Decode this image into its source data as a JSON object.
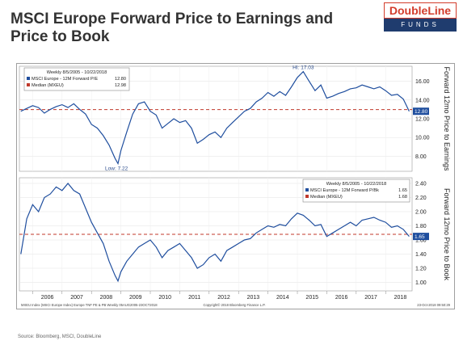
{
  "title": "MSCI Europe Forward Price to Earnings and Price to Book",
  "logo": {
    "top": "DoubleLine",
    "bottom": "FUNDS"
  },
  "source": "Source: Bloomberg, MSCI, DoubleLine",
  "footer": {
    "left": "MXEU Index (MSCI Europe Index) Europe TNF PE & PB  Weekly 05AUG2005-23OCT2018",
    "center": "Copyright© 2018 Bloomberg Finance L.P.",
    "right": "23-Oct-2018 09:50:29"
  },
  "colors": {
    "series": "#1f4e9e",
    "median": "#c0392b",
    "brand_red": "#d33c2b",
    "brand_navy": "#1f3c6e"
  },
  "chart_data": [
    {
      "type": "line",
      "axis_label": "Forward 12mo Price to Earnings",
      "legend": {
        "period": "Weekly 8/5/2005 - 10/22/2018",
        "series_label": "MSCI Europe - 12M Forward P/E",
        "series_value": "12.80",
        "median_label": "Median (MXEU)",
        "median_value": "12.98"
      },
      "ylim": [
        6.4,
        17.6
      ],
      "yticks": [
        "16.00",
        "14.00",
        "12.00",
        "10.00",
        "8.00"
      ],
      "ytick_values": [
        16,
        14,
        12,
        10,
        8
      ],
      "median": 12.98,
      "last_label": "12.80",
      "annotations": [
        {
          "text": "HI: 17.03",
          "x": 2015.2,
          "y": 17.03
        },
        {
          "text": "Low: 7.22",
          "x": 2008.85,
          "y": 7.22
        }
      ],
      "series": [
        {
          "name": "MSCI Europe - 12M Forward P/E",
          "x": [
            2005.6,
            2005.8,
            2006.0,
            2006.2,
            2006.4,
            2006.6,
            2006.8,
            2007.0,
            2007.2,
            2007.4,
            2007.6,
            2007.8,
            2008.0,
            2008.2,
            2008.4,
            2008.6,
            2008.8,
            2008.9,
            2009.0,
            2009.2,
            2009.4,
            2009.6,
            2009.8,
            2010.0,
            2010.2,
            2010.4,
            2010.6,
            2010.8,
            2011.0,
            2011.2,
            2011.4,
            2011.6,
            2011.8,
            2012.0,
            2012.2,
            2012.4,
            2012.6,
            2012.8,
            2013.0,
            2013.2,
            2013.4,
            2013.6,
            2013.8,
            2014.0,
            2014.2,
            2014.4,
            2014.6,
            2014.8,
            2015.0,
            2015.2,
            2015.4,
            2015.6,
            2015.8,
            2016.0,
            2016.2,
            2016.4,
            2016.6,
            2016.8,
            2017.0,
            2017.2,
            2017.4,
            2017.6,
            2017.8,
            2018.0,
            2018.2,
            2018.4,
            2018.6,
            2018.8
          ],
          "values": [
            12.8,
            13.1,
            13.4,
            13.2,
            12.6,
            13.0,
            13.3,
            13.5,
            13.2,
            13.6,
            13.0,
            12.5,
            11.4,
            11.0,
            10.2,
            9.2,
            7.8,
            7.22,
            8.6,
            10.6,
            12.5,
            13.6,
            13.8,
            12.8,
            12.4,
            11.0,
            11.5,
            12.0,
            11.6,
            11.8,
            11.0,
            9.4,
            9.8,
            10.3,
            10.6,
            10.0,
            11.0,
            11.6,
            12.2,
            12.8,
            13.1,
            13.8,
            14.2,
            14.8,
            14.4,
            14.9,
            14.5,
            15.4,
            16.4,
            17.03,
            16.0,
            15.0,
            15.6,
            14.2,
            14.4,
            14.7,
            14.9,
            15.2,
            15.3,
            15.6,
            15.4,
            15.2,
            15.4,
            15.0,
            14.5,
            14.6,
            14.1,
            12.8
          ]
        }
      ]
    },
    {
      "type": "line",
      "axis_label": "Forward 12mo Price to Book",
      "legend": {
        "period": "Weekly 8/5/2005 - 10/22/2018",
        "series_label": "MSCI Europe - 12M Forward P/Bk",
        "series_value": "1.65",
        "median_label": "Median (MXEU)",
        "median_value": "1.68"
      },
      "ylim": [
        0.88,
        2.48
      ],
      "yticks": [
        "2.40",
        "2.20",
        "2.00",
        "1.80",
        "1.60",
        "1.40",
        "1.20",
        "1.00"
      ],
      "ytick_values": [
        2.4,
        2.2,
        2.0,
        1.8,
        1.6,
        1.4,
        1.2,
        1.0
      ],
      "median": 1.68,
      "last_label": "1.65",
      "annotations": [],
      "series": [
        {
          "name": "MSCI Europe - 12M Forward P/Bk",
          "x": [
            2005.6,
            2005.8,
            2006.0,
            2006.2,
            2006.4,
            2006.6,
            2006.8,
            2007.0,
            2007.2,
            2007.4,
            2007.6,
            2007.8,
            2008.0,
            2008.2,
            2008.4,
            2008.6,
            2008.8,
            2008.9,
            2009.0,
            2009.2,
            2009.4,
            2009.6,
            2009.8,
            2010.0,
            2010.2,
            2010.4,
            2010.6,
            2010.8,
            2011.0,
            2011.2,
            2011.4,
            2011.6,
            2011.8,
            2012.0,
            2012.2,
            2012.4,
            2012.6,
            2012.8,
            2013.0,
            2013.2,
            2013.4,
            2013.6,
            2013.8,
            2014.0,
            2014.2,
            2014.4,
            2014.6,
            2014.8,
            2015.0,
            2015.2,
            2015.4,
            2015.6,
            2015.8,
            2016.0,
            2016.2,
            2016.4,
            2016.6,
            2016.8,
            2017.0,
            2017.2,
            2017.4,
            2017.6,
            2017.8,
            2018.0,
            2018.2,
            2018.4,
            2018.6,
            2018.8
          ],
          "values": [
            1.4,
            1.9,
            2.1,
            2.0,
            2.2,
            2.25,
            2.35,
            2.3,
            2.4,
            2.3,
            2.25,
            2.05,
            1.85,
            1.7,
            1.55,
            1.3,
            1.1,
            1.02,
            1.15,
            1.3,
            1.4,
            1.5,
            1.55,
            1.6,
            1.5,
            1.35,
            1.45,
            1.5,
            1.55,
            1.45,
            1.35,
            1.2,
            1.25,
            1.35,
            1.4,
            1.3,
            1.45,
            1.5,
            1.55,
            1.6,
            1.62,
            1.7,
            1.75,
            1.8,
            1.78,
            1.82,
            1.8,
            1.9,
            1.98,
            1.95,
            1.88,
            1.8,
            1.82,
            1.65,
            1.7,
            1.75,
            1.8,
            1.85,
            1.8,
            1.88,
            1.9,
            1.92,
            1.88,
            1.85,
            1.78,
            1.8,
            1.75,
            1.65
          ]
        }
      ]
    }
  ],
  "x_axis": {
    "ticks": [
      "2006",
      "2007",
      "2008",
      "2009",
      "2010",
      "2011",
      "2012",
      "2013",
      "2014",
      "2015",
      "2016",
      "2017",
      "2018"
    ],
    "tick_values": [
      2006,
      2007,
      2008,
      2009,
      2010,
      2011,
      2012,
      2013,
      2014,
      2015,
      2016,
      2017,
      2018
    ],
    "range": [
      2005.55,
      2018.9
    ]
  }
}
